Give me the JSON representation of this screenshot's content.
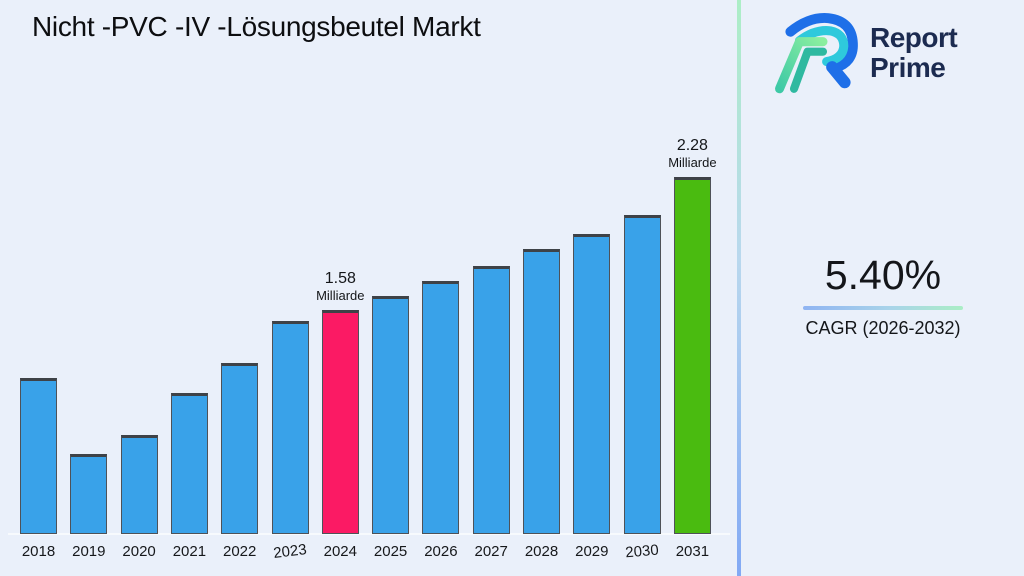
{
  "title": "Nicht -PVC -IV -Lösungsbeutel Markt",
  "brand": {
    "line1": "Report",
    "line2": "Prime",
    "text_color": "#1c2b50",
    "mark_colors": {
      "outer_blue": "#1e6fe8",
      "inner_cyan": "#2ec9dc",
      "leg_green_light": "#8bef9f",
      "leg_teal": "#2fb9a0"
    }
  },
  "stats": {
    "cagr_value": "5.40%",
    "cagr_label": "CAGR (2026-2032)"
  },
  "chart_data": {
    "type": "bar",
    "title": "Nicht -PVC -IV -Lösungsbeutel Markt",
    "categories": [
      "2018",
      "2019",
      "2020",
      "2021",
      "2022",
      "2023",
      "2024",
      "2025",
      "2026",
      "2027",
      "2028",
      "2029",
      "2030",
      "2031"
    ],
    "values": [
      1.22,
      0.82,
      0.92,
      1.14,
      1.3,
      1.52,
      1.58,
      1.65,
      1.73,
      1.81,
      1.9,
      1.98,
      2.08,
      2.28
    ],
    "unit": "Milliarde",
    "xlabel": "",
    "ylabel": "",
    "ylim": [
      0.4,
      2.45
    ],
    "grid": false,
    "legend": null,
    "bar_color_default": "#39a2e9",
    "annotations": {
      "2024": {
        "value_label": "1.58",
        "unit_label": "Milliarde",
        "color": "#fb1a64"
      },
      "2031": {
        "value_label": "2.28",
        "unit_label": "Milliarde",
        "color": "#4abb10"
      }
    }
  },
  "colors": {
    "background": "#eaf0fa",
    "divider_top": "#aceec6",
    "divider_bottom": "#82a9f4",
    "bar_default": "#39a2e9",
    "bar_highlight_current": "#fb1a64",
    "bar_highlight_forecast": "#4abb10"
  }
}
